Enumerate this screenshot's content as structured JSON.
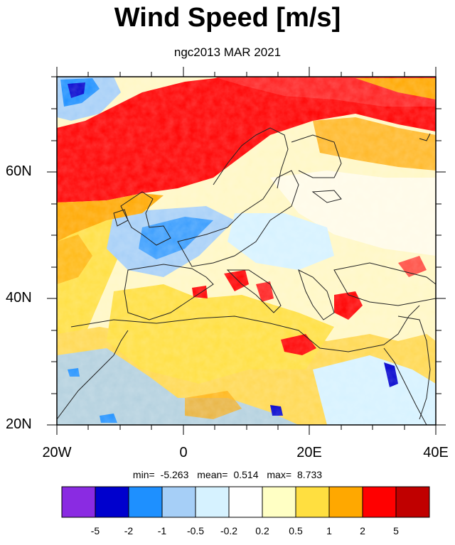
{
  "title": "Wind Speed [m/s]",
  "subtitle": "ngc2013 MAR 2021",
  "axes": {
    "y_ticks": [
      "60N",
      "40N",
      "20N"
    ],
    "x_ticks": [
      "20W",
      "0",
      "20E",
      "40E"
    ]
  },
  "stats": {
    "min_label": "min=",
    "min": "-5.263",
    "mean_label": "mean=",
    "mean": "0.514",
    "max_label": "max=",
    "max": "8.733"
  },
  "colorbar": {
    "colors": [
      "#8a2be2",
      "#0000cd",
      "#1e90ff",
      "#a6cff7",
      "#d6f2ff",
      "#ffffff",
      "#ffffc4",
      "#ffdf40",
      "#ffa800",
      "#ff0000",
      "#c00000"
    ],
    "labels": [
      "-5",
      "-2",
      "-1",
      "-0.5",
      "-0.2",
      "0.2",
      "0.5",
      "1",
      "2",
      "5"
    ]
  },
  "chart_data": {
    "type": "heatmap",
    "title": "Wind Speed [m/s]",
    "subtitle": "ngc2013 MAR 2021",
    "lon_range": [
      -20,
      40
    ],
    "lat_range": [
      20,
      76
    ],
    "x_ticks": [
      -20,
      0,
      20,
      40
    ],
    "y_ticks": [
      20,
      40,
      60
    ],
    "levels": [
      -5,
      -2,
      -1,
      -0.5,
      -0.2,
      0.2,
      0.5,
      1,
      2,
      5
    ],
    "min": -5.263,
    "mean": 0.514,
    "max": 8.733
  }
}
